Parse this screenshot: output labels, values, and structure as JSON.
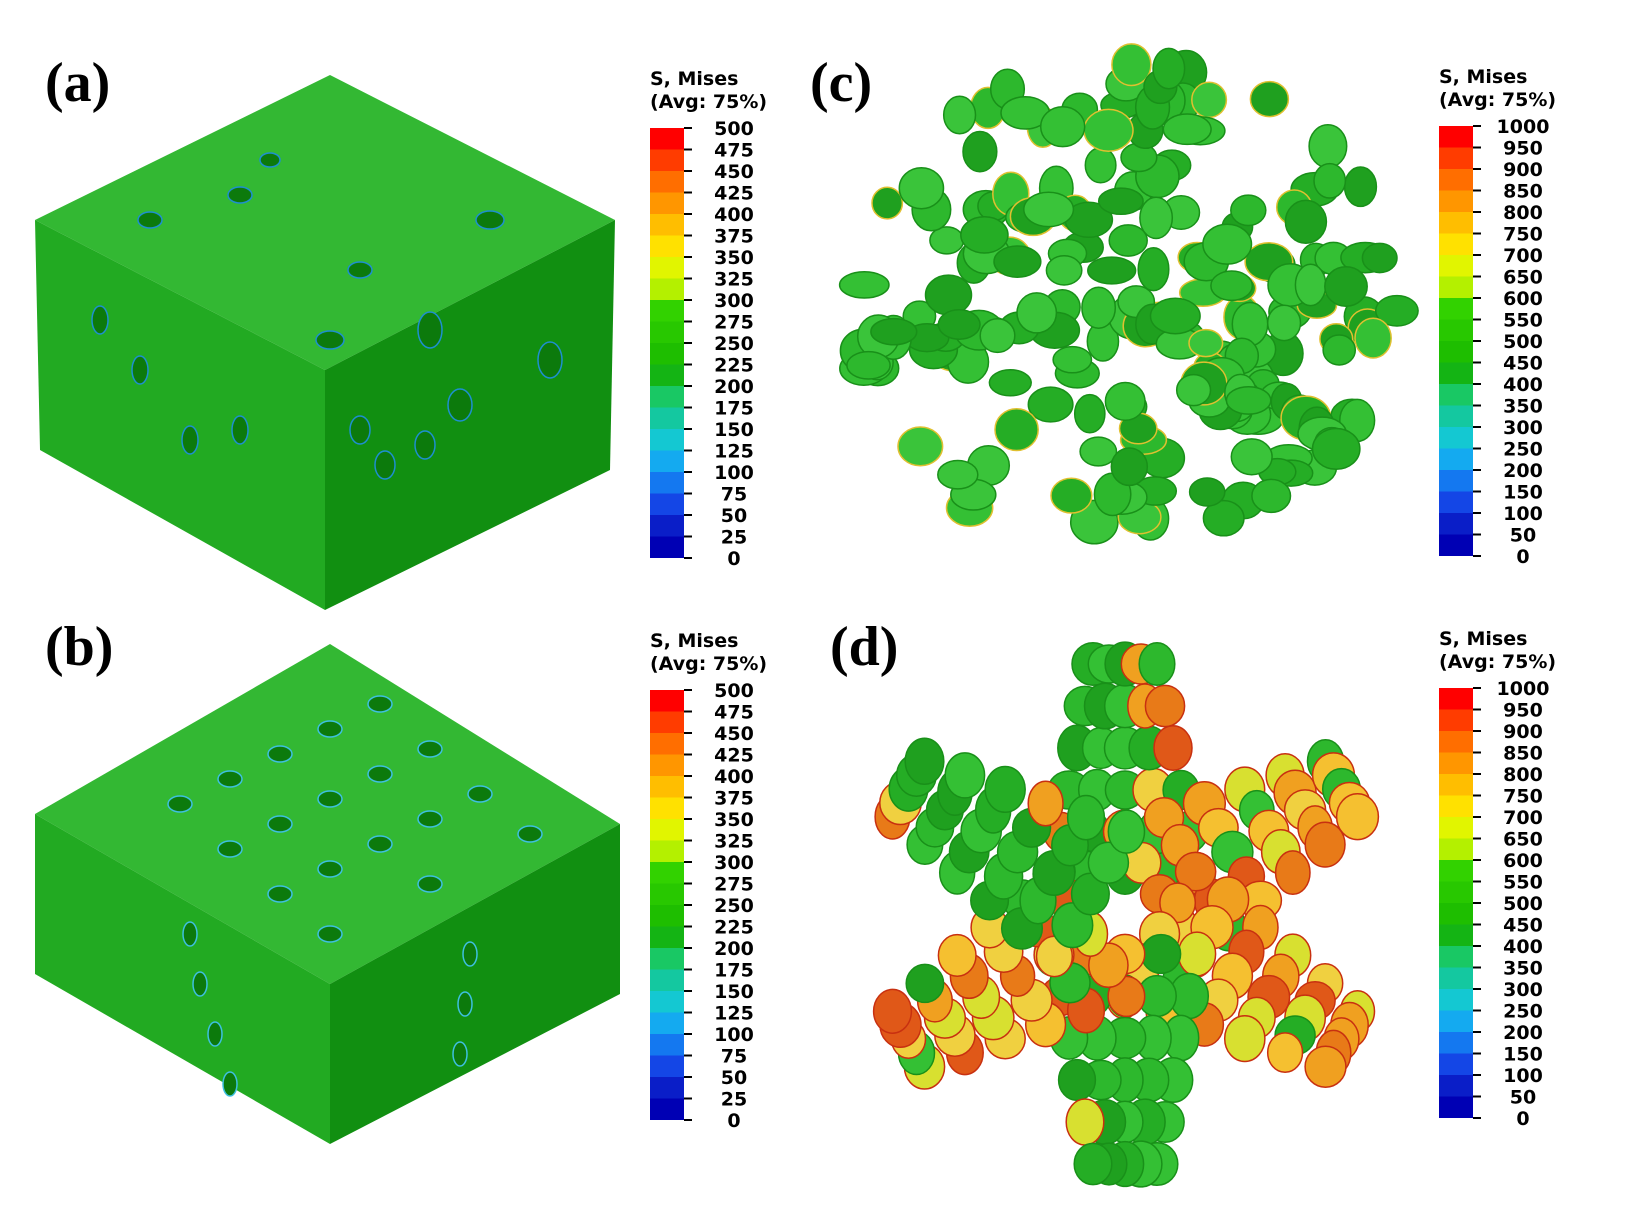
{
  "panels": [
    {
      "label": "(a)",
      "legend_title_line1": "S, Mises",
      "legend_title_line2": "(Avg: 75%)",
      "legend_ticks": [
        "500",
        "475",
        "450",
        "425",
        "400",
        "375",
        "350",
        "325",
        "300",
        "275",
        "250",
        "225",
        "200",
        "175",
        "150",
        "125",
        "100",
        "75",
        "50",
        "25",
        "0"
      ]
    },
    {
      "label": "(b)",
      "legend_title_line1": "S, Mises",
      "legend_title_line2": "(Avg: 75%)",
      "legend_ticks": [
        "500",
        "475",
        "450",
        "425",
        "400",
        "375",
        "350",
        "325",
        "300",
        "275",
        "250",
        "225",
        "200",
        "175",
        "150",
        "125",
        "100",
        "75",
        "50",
        "25",
        "0"
      ]
    },
    {
      "label": "(c)",
      "legend_title_line1": "S, Mises",
      "legend_title_line2": "(Avg: 75%)",
      "legend_ticks": [
        "1000",
        "950",
        "900",
        "850",
        "800",
        "750",
        "700",
        "650",
        "600",
        "550",
        "500",
        "450",
        "400",
        "350",
        "300",
        "250",
        "200",
        "150",
        "100",
        "50",
        "0"
      ]
    },
    {
      "label": "(d)",
      "legend_title_line1": "S, Mises",
      "legend_title_line2": "(Avg: 75%)",
      "legend_ticks": [
        "1000",
        "950",
        "900",
        "850",
        "800",
        "750",
        "700",
        "650",
        "600",
        "550",
        "500",
        "450",
        "400",
        "350",
        "300",
        "250",
        "200",
        "150",
        "100",
        "50",
        "0"
      ]
    }
  ],
  "colors": {
    "colormap_top_to_bottom": [
      "#ff0000",
      "#ff3c00",
      "#ff6e00",
      "#ff9600",
      "#ffbe00",
      "#ffe100",
      "#e1f500",
      "#b4f000",
      "#32d200",
      "#28c800",
      "#1ebe00",
      "#14b414",
      "#19c864",
      "#14c8a0",
      "#14c8d2",
      "#14aaf0",
      "#1478f0",
      "#1446e6",
      "#0a1ec8",
      "#0000b4"
    ],
    "matrix_top": "#2fb52f",
    "matrix_side_light": "#1fa81f",
    "matrix_side_dark": "#0f8f0f"
  }
}
